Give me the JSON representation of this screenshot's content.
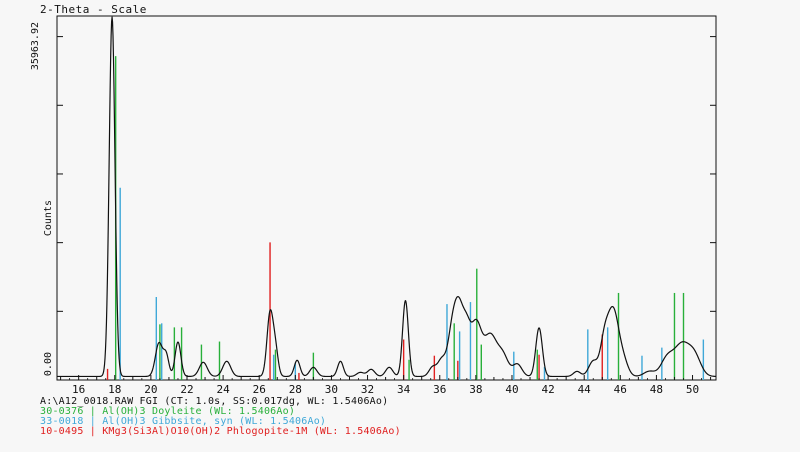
{
  "header": {
    "title": "2-Theta - Scale"
  },
  "chart_data": {
    "type": "line",
    "title": "2-Theta - Scale",
    "ylabel": "Counts",
    "y_max_label": "35963.92",
    "y_min_label": "0.00",
    "xlim": [
      14.8,
      51.3
    ],
    "ylim": [
      0,
      35963.92
    ],
    "x_ticks": [
      16,
      18,
      20,
      22,
      24,
      26,
      28,
      30,
      32,
      34,
      36,
      38,
      40,
      42,
      44,
      46,
      48,
      50
    ],
    "pattern": {
      "name": "A12_0018.RAW",
      "color": "#111111",
      "peaks": [
        {
          "x": 17.85,
          "y": 35500,
          "w": 0.16
        },
        {
          "x": 20.45,
          "y": 3300,
          "w": 0.2
        },
        {
          "x": 20.85,
          "y": 2000,
          "w": 0.15
        },
        {
          "x": 21.5,
          "y": 3400,
          "w": 0.16
        },
        {
          "x": 22.9,
          "y": 1400,
          "w": 0.22
        },
        {
          "x": 24.2,
          "y": 1500,
          "w": 0.22
        },
        {
          "x": 26.6,
          "y": 6200,
          "w": 0.17
        },
        {
          "x": 26.9,
          "y": 2500,
          "w": 0.15
        },
        {
          "x": 28.1,
          "y": 1600,
          "w": 0.16
        },
        {
          "x": 29.0,
          "y": 900,
          "w": 0.2
        },
        {
          "x": 30.5,
          "y": 1500,
          "w": 0.16
        },
        {
          "x": 31.6,
          "y": 400,
          "w": 0.2
        },
        {
          "x": 32.2,
          "y": 700,
          "w": 0.2
        },
        {
          "x": 33.2,
          "y": 900,
          "w": 0.2
        },
        {
          "x": 34.1,
          "y": 7500,
          "w": 0.16
        },
        {
          "x": 35.6,
          "y": 900,
          "w": 0.2
        },
        {
          "x": 36.1,
          "y": 1600,
          "w": 0.22
        },
        {
          "x": 36.7,
          "y": 4500,
          "w": 0.25
        },
        {
          "x": 37.1,
          "y": 6000,
          "w": 0.25
        },
        {
          "x": 37.5,
          "y": 3200,
          "w": 0.2
        },
        {
          "x": 38.0,
          "y": 5200,
          "w": 0.3
        },
        {
          "x": 38.8,
          "y": 4000,
          "w": 0.35
        },
        {
          "x": 39.5,
          "y": 2000,
          "w": 0.3
        },
        {
          "x": 40.3,
          "y": 1200,
          "w": 0.25
        },
        {
          "x": 41.5,
          "y": 4800,
          "w": 0.18
        },
        {
          "x": 43.6,
          "y": 500,
          "w": 0.2
        },
        {
          "x": 44.5,
          "y": 1500,
          "w": 0.25
        },
        {
          "x": 45.1,
          "y": 2800,
          "w": 0.22
        },
        {
          "x": 45.6,
          "y": 6600,
          "w": 0.32
        },
        {
          "x": 46.2,
          "y": 1200,
          "w": 0.25
        },
        {
          "x": 47.6,
          "y": 500,
          "w": 0.3
        },
        {
          "x": 48.6,
          "y": 1800,
          "w": 0.35
        },
        {
          "x": 49.4,
          "y": 3000,
          "w": 0.4
        },
        {
          "x": 50.1,
          "y": 2000,
          "w": 0.35
        }
      ]
    },
    "reference_phases": [
      {
        "color": "#28b03a",
        "label": "30-0376 | Al(OH)3 Doyleite (WL: 1.5406Ao)",
        "lines": [
          {
            "x": 18.05,
            "y": 32000
          },
          {
            "x": 20.5,
            "y": 5500
          },
          {
            "x": 21.3,
            "y": 5200
          },
          {
            "x": 21.7,
            "y": 5200
          },
          {
            "x": 22.8,
            "y": 3500
          },
          {
            "x": 23.8,
            "y": 3800
          },
          {
            "x": 26.9,
            "y": 3000
          },
          {
            "x": 29.0,
            "y": 2700
          },
          {
            "x": 34.3,
            "y": 2000
          },
          {
            "x": 36.8,
            "y": 5600
          },
          {
            "x": 38.05,
            "y": 11000
          },
          {
            "x": 38.3,
            "y": 3500
          },
          {
            "x": 41.4,
            "y": 3000
          },
          {
            "x": 45.9,
            "y": 8600
          },
          {
            "x": 49.0,
            "y": 8600
          },
          {
            "x": 49.5,
            "y": 8600
          }
        ]
      },
      {
        "color": "#3fa8d8",
        "label": "33-0018 | Al(OH)3 Gibbsite, syn (WL: 1.5406Ao)",
        "lines": [
          {
            "x": 18.3,
            "y": 19000
          },
          {
            "x": 20.3,
            "y": 8200
          },
          {
            "x": 20.6,
            "y": 5600
          },
          {
            "x": 26.8,
            "y": 2500
          },
          {
            "x": 28.0,
            "y": 1700
          },
          {
            "x": 36.4,
            "y": 7500
          },
          {
            "x": 37.1,
            "y": 4800
          },
          {
            "x": 37.7,
            "y": 7700
          },
          {
            "x": 40.1,
            "y": 2800
          },
          {
            "x": 41.8,
            "y": 1300
          },
          {
            "x": 44.2,
            "y": 5000
          },
          {
            "x": 45.3,
            "y": 5200
          },
          {
            "x": 47.2,
            "y": 2400
          },
          {
            "x": 48.3,
            "y": 3200
          },
          {
            "x": 50.6,
            "y": 4000
          }
        ]
      },
      {
        "color": "#e02020",
        "label": "10-0495 | KMg3(Si3Al)O10(OH)2 Phlogopite-1M (WL: 1.5406Ao)",
        "lines": [
          {
            "x": 17.6,
            "y": 1100
          },
          {
            "x": 26.6,
            "y": 13600
          },
          {
            "x": 28.2,
            "y": 700
          },
          {
            "x": 34.0,
            "y": 4000
          },
          {
            "x": 35.7,
            "y": 2400
          },
          {
            "x": 37.0,
            "y": 1900
          },
          {
            "x": 41.5,
            "y": 2500
          },
          {
            "x": 45.0,
            "y": 4500
          }
        ]
      }
    ]
  },
  "legend": {
    "file_line": "A:\\A12_0018.RAW FGI (CT: 1.0s, SS:0.017dg, WL: 1.5406Ao)",
    "phases": [
      {
        "label": "30-0376 | Al(OH)3 Doyleite (WL: 1.5406Ao)",
        "color": "#28b03a"
      },
      {
        "label": "33-0018 | Al(OH)3 Gibbsite, syn (WL: 1.5406Ao)",
        "color": "#3fa8d8"
      },
      {
        "label": "10-0495 | KMg3(Si3Al)O10(OH)2 Phlogopite-1M (WL: 1.5406Ao)",
        "color": "#e02020"
      }
    ]
  }
}
